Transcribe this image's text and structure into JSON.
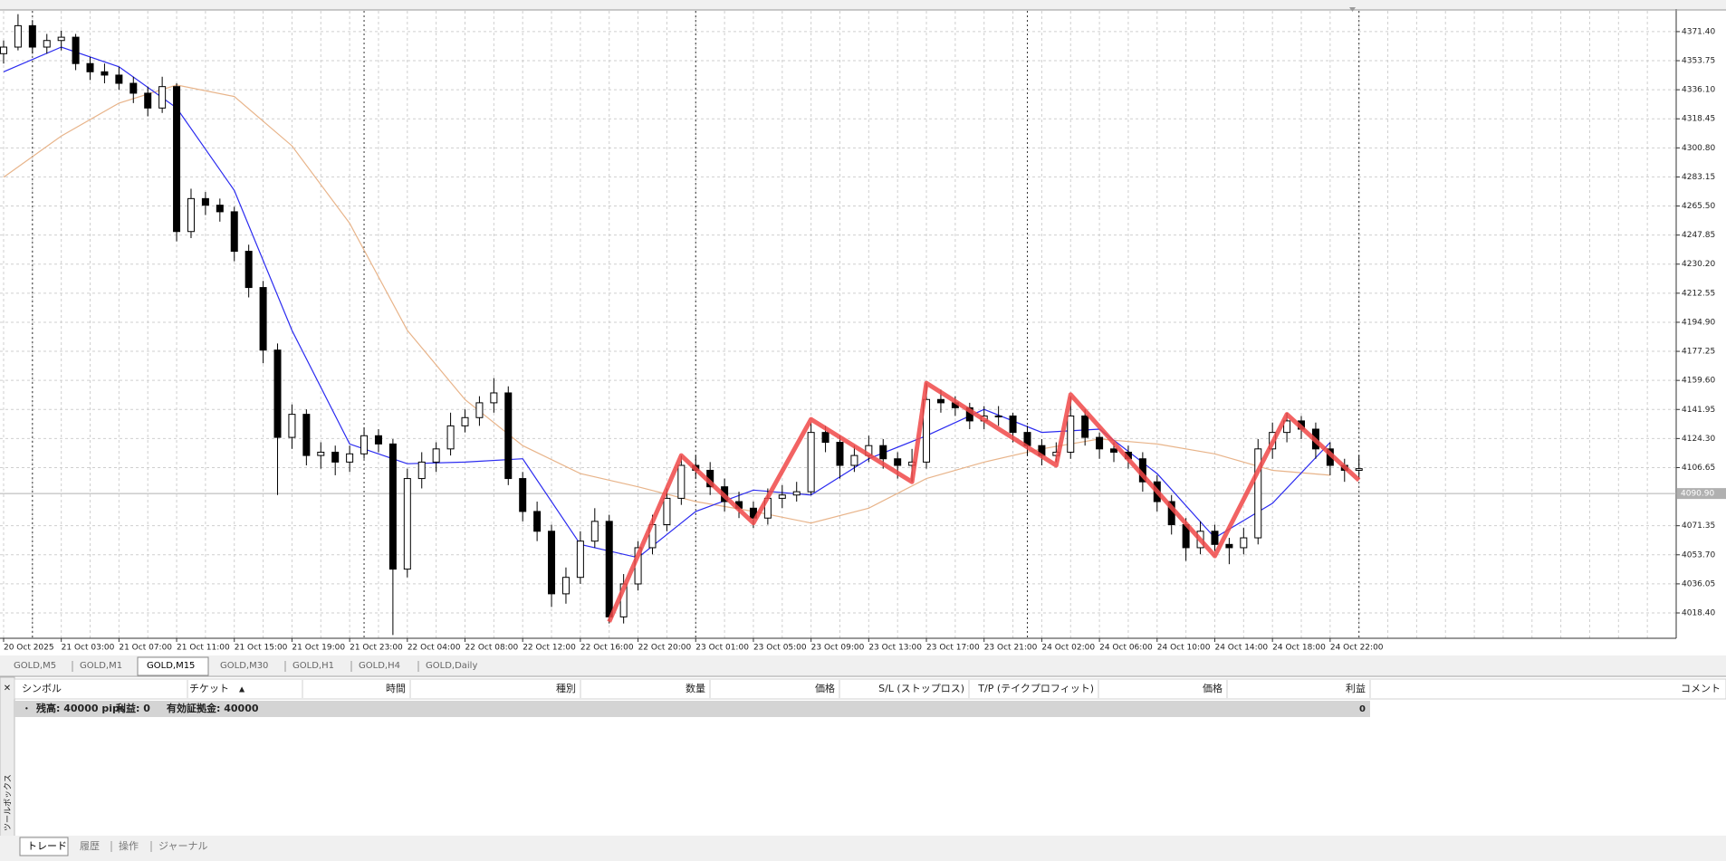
{
  "chart": {
    "type": "candlestick",
    "xlim": [
      -0.25,
      116
    ],
    "ylim": [
      4003,
      4384
    ],
    "xticks": [
      {
        "value": 0,
        "label": "20 Oct 2025"
      },
      {
        "value": 4,
        "label": "21 Oct 03:00"
      },
      {
        "value": 8,
        "label": "21 Oct 07:00"
      },
      {
        "value": 12,
        "label": "21 Oct 11:00"
      },
      {
        "value": 16,
        "label": "21 Oct 15:00"
      },
      {
        "value": 20,
        "label": "21 Oct 19:00"
      },
      {
        "value": 24,
        "label": "21 Oct 23:00"
      },
      {
        "value": 28,
        "label": "22 Oct 04:00"
      },
      {
        "value": 32,
        "label": "22 Oct 08:00"
      },
      {
        "value": 36,
        "label": "22 Oct 12:00"
      },
      {
        "value": 40,
        "label": "22 Oct 16:00"
      },
      {
        "value": 44,
        "label": "22 Oct 20:00"
      },
      {
        "value": 48,
        "label": "23 Oct 01:00"
      },
      {
        "value": 52,
        "label": "23 Oct 05:00"
      },
      {
        "value": 56,
        "label": "23 Oct 09:00"
      },
      {
        "value": 60,
        "label": "23 Oct 13:00"
      },
      {
        "value": 64,
        "label": "23 Oct 17:00"
      },
      {
        "value": 68,
        "label": "23 Oct 21:00"
      },
      {
        "value": 72,
        "label": "24 Oct 02:00"
      },
      {
        "value": 76,
        "label": "24 Oct 06:00"
      },
      {
        "value": 80,
        "label": "24 Oct 10:00"
      },
      {
        "value": 84,
        "label": "24 Oct 14:00"
      },
      {
        "value": 88,
        "label": "24 Oct 18:00"
      },
      {
        "value": 92,
        "label": "24 Oct 22:00"
      }
    ],
    "yticks": [
      {
        "value": 4371.4,
        "label": "4371.40"
      },
      4353.75,
      {
        "value": 4336.1,
        "label": "4336.10"
      },
      4318.45,
      {
        "value": 4300.8,
        "label": "4300.80"
      },
      4283.15,
      {
        "value": 4265.5,
        "label": "4265.50"
      },
      4247.85,
      {
        "value": 4230.2,
        "label": "4230.20"
      },
      4212.55,
      {
        "value": 4194.9,
        "label": "4194.90"
      },
      4177.25,
      {
        "value": 4159.6,
        "label": "4159.60"
      },
      4141.95,
      {
        "value": 4124.3,
        "label": "4124.30"
      },
      4106.65,
      4071.35,
      {
        "value": 4053.7,
        "label": "4053.70"
      },
      4036.05,
      {
        "value": 4018.4,
        "label": "4018.40"
      }
    ],
    "grid": true,
    "candles": [
      [
        4358,
        4366,
        4352,
        4362
      ],
      [
        4362,
        4382,
        4360,
        4375
      ],
      [
        4375,
        4378,
        4358,
        4362
      ],
      [
        4362,
        4370,
        4358,
        4366
      ],
      [
        4366,
        4372,
        4360,
        4368
      ],
      [
        4368,
        4370,
        4348,
        4352
      ],
      [
        4352,
        4356,
        4342,
        4347
      ],
      [
        4347,
        4352,
        4340,
        4345
      ],
      [
        4345,
        4350,
        4336,
        4340
      ],
      [
        4340,
        4344,
        4328,
        4334
      ],
      [
        4334,
        4338,
        4320,
        4325
      ],
      [
        4325,
        4344,
        4322,
        4338
      ],
      [
        4338,
        4340,
        4244,
        4250
      ],
      [
        4250,
        4276,
        4246,
        4270
      ],
      [
        4270,
        4274,
        4260,
        4266
      ],
      [
        4266,
        4270,
        4256,
        4262
      ],
      [
        4262,
        4265,
        4232,
        4238
      ],
      [
        4238,
        4242,
        4210,
        4216
      ],
      [
        4216,
        4220,
        4170,
        4178
      ],
      [
        4178,
        4182,
        4090,
        4125
      ],
      [
        4125,
        4145,
        4118,
        4139
      ],
      [
        4139,
        4142,
        4108,
        4114
      ],
      [
        4114,
        4122,
        4106,
        4116
      ],
      [
        4116,
        4120,
        4102,
        4110
      ],
      [
        4110,
        4120,
        4104,
        4115
      ],
      [
        4115,
        4131,
        4112,
        4126
      ],
      [
        4126,
        4130,
        4116,
        4121
      ],
      [
        4121,
        4124,
        4005,
        4045
      ],
      [
        4045,
        4106,
        4040,
        4100
      ],
      [
        4100,
        4116,
        4094,
        4110
      ],
      [
        4110,
        4122,
        4104,
        4118
      ],
      [
        4118,
        4140,
        4114,
        4132
      ],
      [
        4132,
        4142,
        4128,
        4137
      ],
      [
        4137,
        4150,
        4132,
        4146
      ],
      [
        4146,
        4161,
        4140,
        4152
      ],
      [
        4152,
        4156,
        4096,
        4100
      ],
      [
        4100,
        4104,
        4074,
        4080
      ],
      [
        4080,
        4086,
        4062,
        4068
      ],
      [
        4068,
        4072,
        4022,
        4030
      ],
      [
        4030,
        4046,
        4024,
        4040
      ],
      [
        4040,
        4068,
        4036,
        4062
      ],
      [
        4062,
        4082,
        4058,
        4074
      ],
      [
        4074,
        4078,
        4012,
        4016
      ],
      [
        4016,
        4042,
        4012,
        4036
      ],
      [
        4036,
        4062,
        4032,
        4058
      ],
      [
        4058,
        4078,
        4054,
        4072
      ],
      [
        4072,
        4094,
        4068,
        4088
      ],
      [
        4088,
        4114,
        4084,
        4108
      ],
      [
        4108,
        4114,
        4100,
        4105
      ],
      [
        4105,
        4110,
        4090,
        4095
      ],
      [
        4095,
        4100,
        4080,
        4086
      ],
      [
        4086,
        4092,
        4076,
        4082
      ],
      [
        4082,
        4086,
        4070,
        4076
      ],
      [
        4076,
        4094,
        4072,
        4088
      ],
      [
        4088,
        4096,
        4082,
        4090
      ],
      [
        4090,
        4098,
        4086,
        4092
      ],
      [
        4092,
        4134,
        4090,
        4128
      ],
      [
        4128,
        4132,
        4116,
        4122
      ],
      [
        4122,
        4126,
        4100,
        4108
      ],
      [
        4108,
        4120,
        4104,
        4114
      ],
      [
        4114,
        4126,
        4110,
        4120
      ],
      [
        4120,
        4124,
        4106,
        4112
      ],
      [
        4112,
        4116,
        4100,
        4108
      ],
      [
        4108,
        4118,
        4098,
        4110
      ],
      [
        4110,
        4158,
        4106,
        4148
      ],
      [
        4148,
        4154,
        4140,
        4146
      ],
      [
        4146,
        4150,
        4138,
        4143
      ],
      [
        4143,
        4146,
        4130,
        4135
      ],
      [
        4135,
        4144,
        4130,
        4138
      ],
      [
        4138,
        4144,
        4132,
        4138
      ],
      [
        4138,
        4140,
        4122,
        4128
      ],
      [
        4128,
        4132,
        4114,
        4120
      ],
      [
        4120,
        4124,
        4108,
        4114
      ],
      [
        4114,
        4122,
        4110,
        4116
      ],
      [
        4116,
        4150,
        4112,
        4138
      ],
      [
        4138,
        4142,
        4120,
        4125
      ],
      [
        4125,
        4128,
        4112,
        4118
      ],
      [
        4118,
        4122,
        4110,
        4116
      ],
      [
        4116,
        4120,
        4106,
        4112
      ],
      [
        4112,
        4116,
        4092,
        4098
      ],
      [
        4098,
        4102,
        4080,
        4086
      ],
      [
        4086,
        4090,
        4066,
        4072
      ],
      [
        4072,
        4076,
        4050,
        4058
      ],
      [
        4058,
        4074,
        4054,
        4068
      ],
      [
        4068,
        4072,
        4056,
        4060
      ],
      [
        4060,
        4064,
        4048,
        4058
      ],
      [
        4058,
        4070,
        4054,
        4064
      ],
      [
        4064,
        4124,
        4060,
        4118
      ],
      [
        4118,
        4134,
        4112,
        4128
      ],
      [
        4128,
        4140,
        4122,
        4135
      ],
      [
        4135,
        4138,
        4124,
        4130
      ],
      [
        4130,
        4134,
        4112,
        4118
      ],
      [
        4118,
        4122,
        4102,
        4108
      ],
      [
        4108,
        4112,
        4098,
        4105
      ],
      [
        4105,
        4114,
        4100,
        4106
      ]
    ],
    "series": [
      {
        "color": "#2a2af0",
        "x": [
          0,
          4,
          8,
          12,
          16,
          20,
          24,
          28,
          32,
          36,
          40,
          44,
          48,
          52,
          56,
          60,
          64,
          68,
          72,
          76,
          80,
          84,
          88,
          92
        ],
        "values": [
          4347,
          4362,
          4350,
          4325,
          4275,
          4190,
          4121,
          4109,
          4110,
          4112,
          4060,
          4052,
          4080,
          4093,
          4090,
          4112,
          4126,
          4142,
          4128,
          4130,
          4103,
          4064,
          4085,
          4122
        ]
      },
      {
        "color": "#e8b48a",
        "x": [
          0,
          4,
          8,
          12,
          16,
          20,
          24,
          28,
          32,
          36,
          40,
          44,
          48,
          52,
          56,
          60,
          64,
          68,
          72,
          76,
          80,
          84,
          88,
          92
        ],
        "values": [
          4283,
          4308,
          4328,
          4339,
          4332,
          4302,
          4255,
          4190,
          4148,
          4120,
          4103,
          4095,
          4086,
          4080,
          4073,
          4082,
          4100,
          4110,
          4118,
          4124,
          4121,
          4115,
          4105,
          4102
        ]
      }
    ],
    "zigzag": {
      "color": "#f04848",
      "x": [
        42,
        47,
        52,
        56,
        63,
        64,
        73,
        74,
        84,
        89,
        94
      ],
      "values": [
        4013,
        4114,
        4073,
        4136,
        4098,
        4158,
        4108,
        4151,
        4053,
        4139,
        4099
      ]
    },
    "day_separators": [
      2,
      25,
      48,
      71,
      94
    ],
    "current_price": {
      "value": 4090.9,
      "label": "4090.90"
    }
  },
  "tabs": [
    "GOLD,M5",
    "GOLD,M1",
    "GOLD,M15",
    "GOLD,M30",
    "GOLD,H1",
    "GOLD,H4",
    "GOLD,Daily"
  ],
  "active_tab": 2,
  "terminal": {
    "side_label": "ツールボックス",
    "columns": [
      "シンボル",
      "チケット",
      "時間",
      "種別",
      "数量",
      "価格",
      "S/L (ストップロス)",
      "T/P (テイクプロフィット)",
      "価格",
      "利益",
      "コメント"
    ],
    "sort_indicator": "▲",
    "summary": [
      "残高: 40000 pips",
      "利益: 0",
      "有効証拠金: 40000"
    ],
    "summary_profit": 0,
    "tabs": [
      "トレード",
      "履歴",
      "操作",
      "ジャーナル"
    ]
  }
}
